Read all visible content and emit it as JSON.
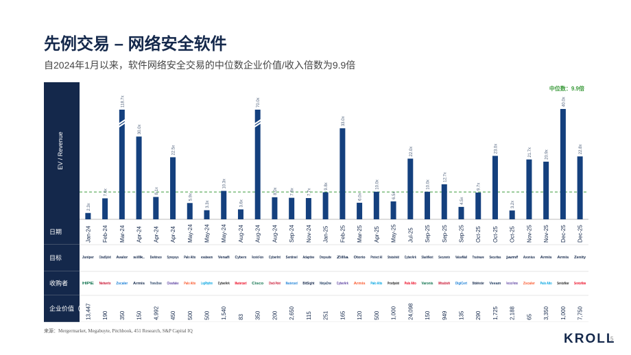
{
  "header": {
    "title": "先例交易 – 网络安全软件",
    "subtitle": "自2024年1月以来，软件网络安全交易的中位数企业价值/收入倍数为9.9倍"
  },
  "row_labels": {
    "date": "日期",
    "target": "目标",
    "acquirer": "收购者",
    "ev": "企业价值（$百万）"
  },
  "median_label": "中位数：9.9倍",
  "footer": {
    "source": "来源：Mergermarket, Megabuyte, Pitchbook, 451 Research, S&P Capital IQ",
    "logo": "KROLL",
    "page": "5"
  },
  "colors": {
    "bar": "#14407e",
    "navy": "#14284b",
    "median": "#3a9a3a",
    "row_band": "#14284b"
  },
  "chart_data": {
    "type": "bar",
    "ylabel": "EV / Revenue",
    "median": 9.9,
    "ylim": [
      0,
      40
    ],
    "broken_axis_values": [
      118.7,
      70.0
    ],
    "categories": [
      "Jan-24",
      "Feb-24",
      "Mar-24",
      "Apr-24",
      "Apr-24",
      "Apr-24",
      "May-24",
      "May-24",
      "May-24",
      "Aug-24",
      "Aug-24",
      "Aug-24",
      "Sep-24",
      "Nov-24",
      "Jan-25",
      "Feb-25",
      "Mar-25",
      "Apr-25",
      "May-25",
      "Jul-25",
      "Sep-25",
      "Sep-25",
      "Sep-25",
      "Oct-25",
      "Oct-25",
      "Oct-25",
      "Nov-25",
      "Nov-25",
      "Dec-25",
      "Dec-25"
    ],
    "values": [
      2.3,
      7.6,
      118.7,
      30.0,
      8.1,
      22.5,
      5.9,
      3.3,
      10.3,
      3.6,
      70.0,
      8.0,
      7.8,
      7.7,
      9.8,
      33.0,
      6.0,
      10.0,
      6.5,
      22.0,
      10.0,
      12.7,
      4.5,
      9.7,
      23.0,
      3.2,
      21.7,
      20.9,
      40.0,
      22.8
    ],
    "data_labels": [
      "2.3x",
      "7.6x",
      "118.7x",
      "30.0x",
      "8.1x",
      "22.5x",
      "5.9x",
      "3.3x",
      "10.3x",
      "3.6x",
      "70.0x",
      "8.0x",
      "7.8x",
      "7.7x",
      "9.8x",
      "33.0x",
      "6.0x",
      "10.0x",
      "6.5x",
      "22.0x",
      "10.0x",
      "12.7x",
      "4.5x",
      "9.7x",
      "23.0x",
      "3.2x",
      "21.7x",
      "20.9x",
      "40.0x",
      "22.8x"
    ],
    "targets": [
      "Juniper",
      "CloudSploit",
      "Avalor",
      "silk.",
      "Darktrace",
      "Synopsys",
      "Palo Alto",
      "exabeam",
      "Venafi",
      "Cyberx",
      "Recorded Future",
      "CyberInt",
      "Sentinel",
      "Adaptive",
      "Dropsuite",
      "Zilla",
      "Otorio",
      "Protect AI",
      "Stratoshield",
      "CyberArk",
      "SlashNext",
      "Securonix",
      "ValueMail",
      "Trustwave",
      "Securitas",
      "jamf",
      "Axonius",
      "Armis",
      "Armis",
      "Zenity"
    ],
    "acquirers": [
      "HPE",
      "Netwrix",
      "Zscaler",
      "Armis",
      "Thoma Bravo",
      "Clearlake",
      "Palo Alto",
      "LogRhythm",
      "CyberArk",
      "Mastercard",
      "Cisco",
      "Check Point",
      "Mastercard",
      "BitSight",
      "NinjaOne",
      "CyberArk",
      "Armis",
      "Palo Alto",
      "Proofpoint",
      "Palo Alto",
      "Varonis",
      "Mitsubishi",
      "DigiCert",
      "Bitdefender",
      "Veeam",
      "Francisco Partners",
      "Zscaler",
      "Palo Alto",
      "ServiceNow",
      "ServiceNow"
    ],
    "ev_musd": [
      "13,447",
      "190",
      "350",
      "150",
      "4,992",
      "450",
      "500",
      "500",
      "1,540",
      "83",
      "350",
      "200",
      "2,650",
      "115",
      "251",
      "165",
      "120",
      "500",
      "1,000",
      "24,098",
      "150",
      "949",
      "135",
      "290",
      "1,725",
      "2,188",
      "65",
      "3,350",
      "1,000",
      "7,750"
    ]
  }
}
